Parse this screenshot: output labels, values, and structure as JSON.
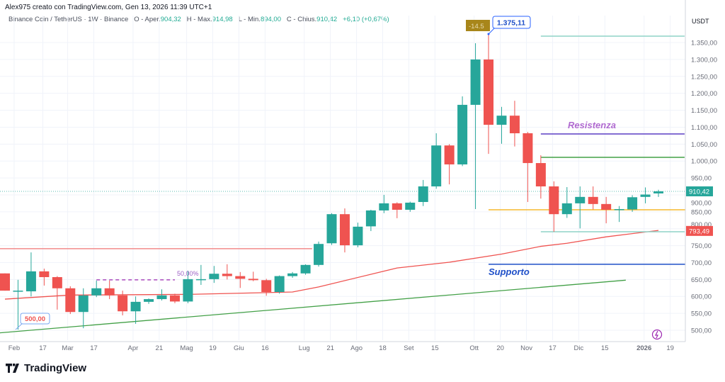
{
  "header": {
    "credit": "Alex975 creato con TradingView.com, Gen 13, 2026 11:39 UTC+1",
    "symbol": "Binance Coin / TetherUS · 1W · Binance",
    "open_label": "O - Aper.",
    "open": "904,32",
    "high_label": "H - Max.",
    "high": "914,98",
    "low_label": "L - Min.",
    "low": "894,00",
    "close_label": "C - Chius.",
    "close": "910,42",
    "change": "+6,10 (+0,67%)"
  },
  "colors": {
    "up": "#26a69a",
    "down": "#ef5350",
    "ma": "#ef5350",
    "trend": "#43a047",
    "resistance": "#5b3fc4",
    "support": "#1e4fc8",
    "yellow": "#f5b82e",
    "accent_label": "#2962ff"
  },
  "chart_data": {
    "type": "candlestick",
    "currency": "USDT",
    "ylim": [
      470,
      1400
    ],
    "y_ticks": [
      "500,00",
      "550,00",
      "600,00",
      "650,00",
      "700,00",
      "750,00",
      "800,00",
      "850,00",
      "900,00",
      "950,00",
      "1.000,00",
      "1.050,00",
      "1.100,00",
      "1.150,00",
      "1.200,00",
      "1.250,00",
      "1.300,00",
      "1.350,00"
    ],
    "x_ticks": [
      {
        "label": "Feb",
        "week": 0.7
      },
      {
        "label": "17",
        "week": 2.9
      },
      {
        "label": "Mar",
        "week": 4.8
      },
      {
        "label": "17",
        "week": 6.8
      },
      {
        "label": "Apr",
        "week": 9.8
      },
      {
        "label": "21",
        "week": 11.8
      },
      {
        "label": "Mag",
        "week": 13.9
      },
      {
        "label": "19",
        "week": 15.9
      },
      {
        "label": "Giu",
        "week": 17.9
      },
      {
        "label": "16",
        "week": 19.9
      },
      {
        "label": "Lug",
        "week": 22.9
      },
      {
        "label": "21",
        "week": 24.9
      },
      {
        "label": "Ago",
        "week": 26.9
      },
      {
        "label": "18",
        "week": 28.9
      },
      {
        "label": "Set",
        "week": 30.9
      },
      {
        "label": "15",
        "week": 32.9
      },
      {
        "label": "Ott",
        "week": 35.9
      },
      {
        "label": "20",
        "week": 37.9
      },
      {
        "label": "Nov",
        "week": 39.9
      },
      {
        "label": "17",
        "week": 41.9
      },
      {
        "label": "Dic",
        "week": 43.9
      },
      {
        "label": "15",
        "week": 45.9
      },
      {
        "label": "2026",
        "week": 48.9,
        "bold": true
      },
      {
        "label": "19",
        "week": 50.9
      }
    ],
    "candles_ohlc": [
      [
        668,
        668,
        617,
        617
      ],
      [
        617,
        649,
        502,
        617
      ],
      [
        615,
        730,
        600,
        674
      ],
      [
        674,
        682,
        632,
        657
      ],
      [
        657,
        660,
        561,
        624
      ],
      [
        624,
        630,
        548,
        554
      ],
      [
        554,
        624,
        506,
        603
      ],
      [
        603,
        647,
        598,
        624
      ],
      [
        624,
        647,
        592,
        603
      ],
      [
        603,
        617,
        544,
        556
      ],
      [
        556,
        600,
        519,
        584
      ],
      [
        584,
        594,
        578,
        592
      ],
      [
        592,
        621,
        588,
        603
      ],
      [
        603,
        608,
        580,
        585
      ],
      [
        585,
        676,
        580,
        651
      ],
      [
        651,
        693,
        634,
        651
      ],
      [
        651,
        690,
        640,
        667
      ],
      [
        667,
        695,
        650,
        660
      ],
      [
        660,
        672,
        625,
        652
      ],
      [
        652,
        673,
        645,
        648
      ],
      [
        648,
        652,
        602,
        613
      ],
      [
        613,
        662,
        608,
        660
      ],
      [
        660,
        672,
        655,
        668
      ],
      [
        668,
        695,
        664,
        693
      ],
      [
        693,
        762,
        688,
        755
      ],
      [
        757,
        846,
        752,
        843
      ],
      [
        843,
        860,
        730,
        751
      ],
      [
        751,
        818,
        745,
        806
      ],
      [
        807,
        856,
        793,
        854
      ],
      [
        854,
        900,
        846,
        875
      ],
      [
        875,
        878,
        831,
        856
      ],
      [
        856,
        880,
        850,
        877
      ],
      [
        879,
        944,
        867,
        925
      ],
      [
        925,
        1082,
        918,
        1046
      ],
      [
        1046,
        1050,
        931,
        990
      ],
      [
        990,
        1191,
        985,
        1166
      ],
      [
        1166,
        1348,
        858,
        1300
      ],
      [
        1300,
        1375.11,
        1021,
        1107
      ],
      [
        1107,
        1160,
        1051,
        1134
      ],
      [
        1134,
        1178,
        1043,
        1082
      ],
      [
        1082,
        1086,
        879,
        994
      ],
      [
        994,
        1017,
        889,
        925
      ],
      [
        925,
        940,
        791,
        843
      ],
      [
        843,
        923,
        832,
        875
      ],
      [
        875,
        925,
        801,
        894
      ],
      [
        894,
        925,
        857,
        873
      ],
      [
        873,
        894,
        816,
        856
      ],
      [
        856,
        867,
        820,
        858
      ],
      [
        857,
        899,
        850,
        893
      ],
      [
        894,
        922,
        875,
        901
      ],
      [
        904.32,
        914.98,
        894,
        910.42
      ]
    ],
    "moving_average": [
      [
        0,
        592
      ],
      [
        5,
        604
      ],
      [
        14,
        606
      ],
      [
        22,
        613
      ],
      [
        24,
        628
      ],
      [
        30,
        684
      ],
      [
        34,
        701
      ],
      [
        38,
        725
      ],
      [
        41,
        748
      ],
      [
        43,
        757
      ],
      [
        46,
        776
      ],
      [
        50,
        795
      ]
    ],
    "trendline": [
      [
        -0.5,
        492
      ],
      [
        47.5,
        648
      ]
    ],
    "range_line": {
      "price": 741,
      "from": -0.5,
      "to": 23.5
    },
    "fib_line": {
      "price": 649,
      "from": 7,
      "to": 13,
      "label": "50,00%"
    },
    "horizontal_levels": [
      {
        "price": 1369,
        "from": 41,
        "to": 52,
        "color": "#8fd3c7",
        "label": ""
      },
      {
        "price": 1080,
        "from": 41,
        "to": 52,
        "color": "#5b3fc4",
        "label": "Resistenza"
      },
      {
        "price": 1011,
        "from": 41,
        "to": 52,
        "color": "#43a047",
        "label": ""
      },
      {
        "price": 856,
        "from": 37,
        "to": 52.5,
        "color": "#f5b82e",
        "label": ""
      },
      {
        "price": 791,
        "from": 41,
        "to": 52,
        "color": "#8fd3c7",
        "label": ""
      },
      {
        "price": 695,
        "from": 37,
        "to": 52.5,
        "color": "#1e4fc8",
        "label": "Supporto"
      }
    ],
    "callouts": {
      "high": "1.375,11",
      "low": "500,00",
      "drop": "-14.5"
    },
    "last_price": "910,42",
    "ma_price": "793,49"
  },
  "footer": {
    "brand": "TradingView"
  }
}
